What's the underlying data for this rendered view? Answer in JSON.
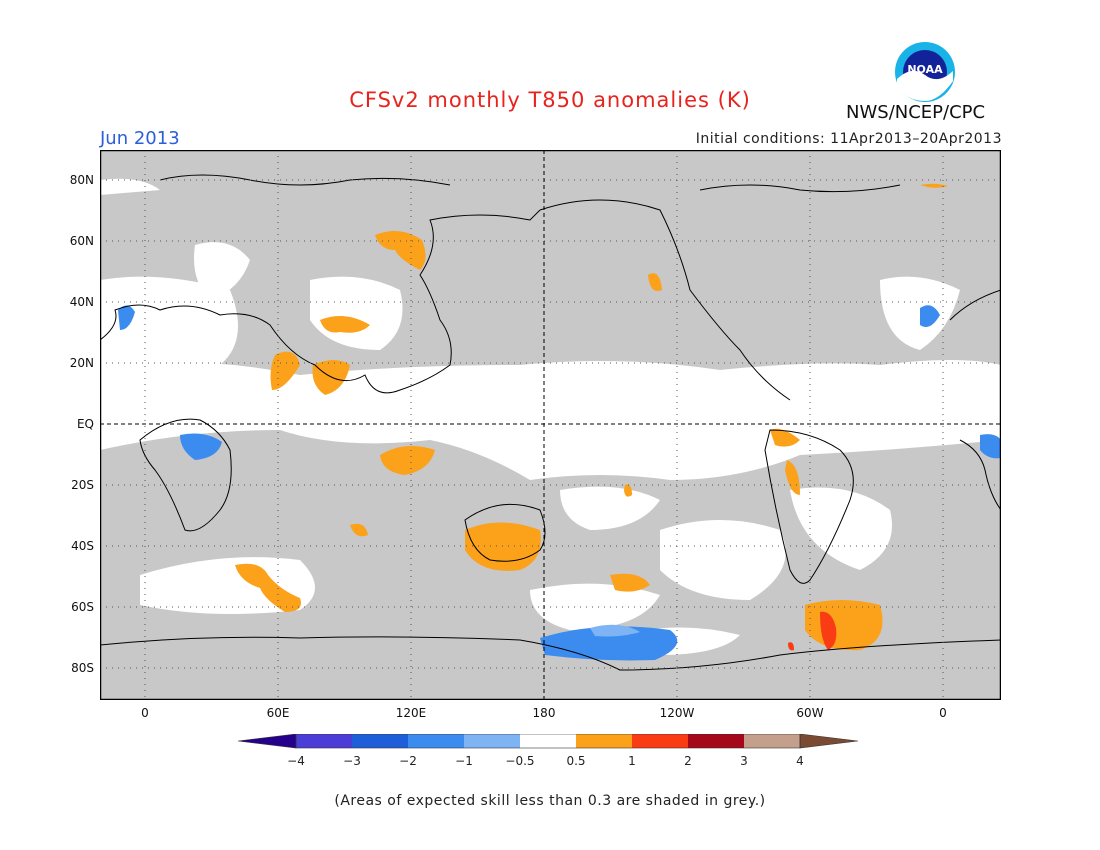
{
  "header": {
    "title": "CFSv2 monthly T850 anomalies (K)",
    "month": "Jun 2013",
    "initial_conditions": "Initial conditions: 11Apr2013–20Apr2013",
    "agency": "NWS/NCEP/CPC",
    "logo_text": "NOAA"
  },
  "map": {
    "lat_labels": [
      "80N",
      "60N",
      "40N",
      "20N",
      "EQ",
      "20S",
      "40S",
      "60S",
      "80S"
    ],
    "lon_labels": [
      "0",
      "60E",
      "120E",
      "180",
      "120W",
      "60W",
      "0"
    ]
  },
  "colorbar": {
    "tick_labels": [
      "−4",
      "−3",
      "−2",
      "−1",
      "−0.5",
      "0.5",
      "1",
      "2",
      "3",
      "4"
    ],
    "colors": [
      "#24008c",
      "#4a3ed6",
      "#1e5fd9",
      "#3c8cf0",
      "#7fb4f4",
      "#ffffff",
      "#fba11a",
      "#fa3c14",
      "#a5081a",
      "#c4a08c",
      "#7a4a32"
    ]
  },
  "colors": {
    "skill_grey": "#c8c8c8",
    "warm1": "#fba11a",
    "warm2": "#fa3c14",
    "cool1": "#3c8cf0",
    "cool2": "#7fb4f4"
  },
  "footnote": "(Areas of expected skill less than 0.3 are shaded in grey.)"
}
